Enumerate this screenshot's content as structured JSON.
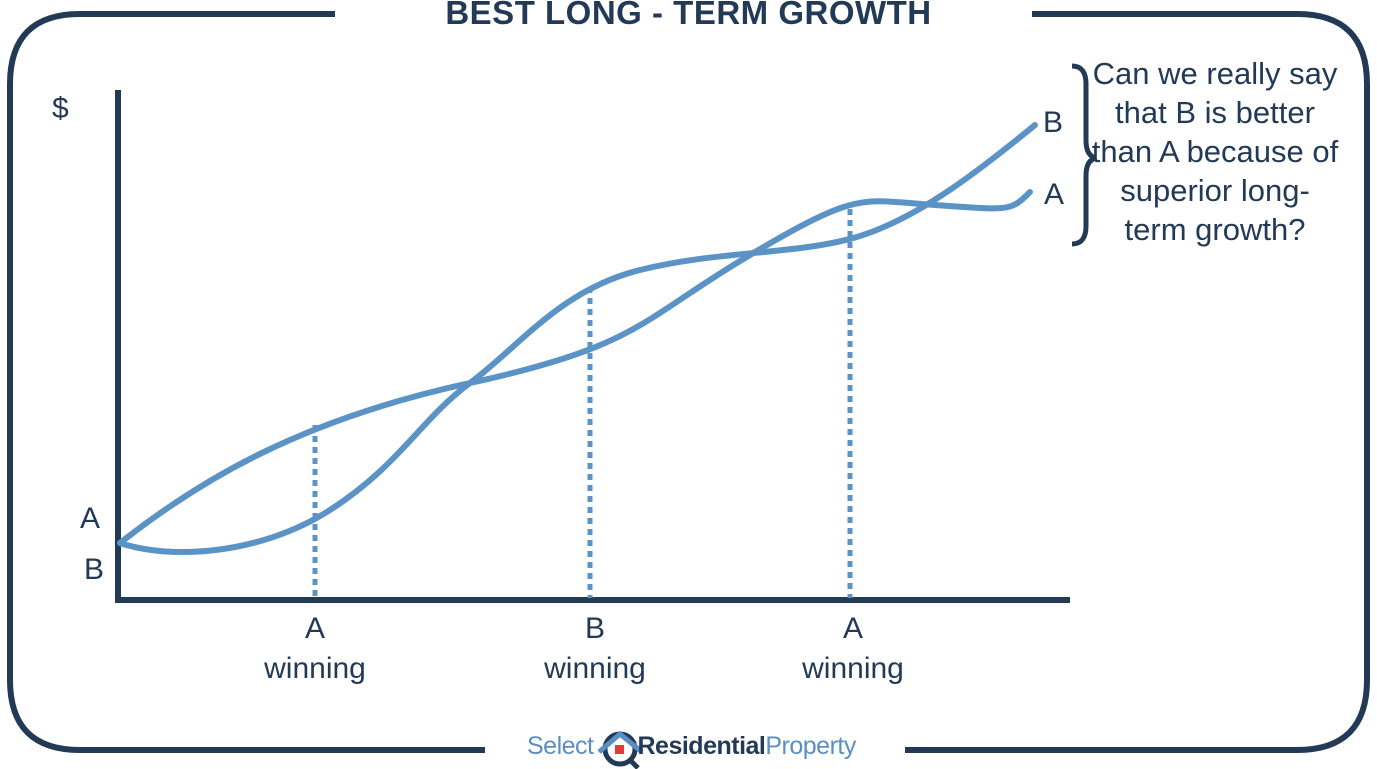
{
  "title": "BEST LONG - TERM GROWTH",
  "y_axis_label": "$",
  "start_labels": {
    "a": "A",
    "b": "B"
  },
  "end_labels": {
    "a": "A",
    "b": "B"
  },
  "markers": [
    {
      "leader": "A",
      "text": "winning"
    },
    {
      "leader": "B",
      "text": "winning"
    },
    {
      "leader": "A",
      "text": "winning"
    }
  ],
  "question": "Can we really say that B is better than A because of superior long-term growth?",
  "logo": {
    "part1": "Select",
    "part2": "Residential",
    "part3": "Property"
  },
  "colors": {
    "navy": "#233a57",
    "line": "#5b93c7",
    "logo_red": "#e23b3b"
  }
}
